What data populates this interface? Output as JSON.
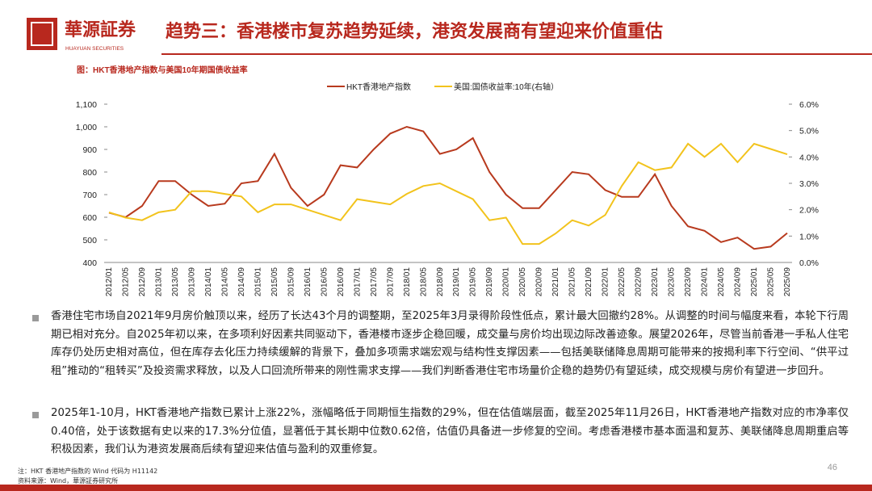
{
  "header": {
    "logo_name": "華源証券",
    "logo_sub": "HUAYUAN SECURITIES",
    "title": "趋势三：香港楼市复苏趋势延续，港资发展商有望迎来价值重估"
  },
  "figure_caption": "图：HKT香港地产指数与美国10年期国债收益率",
  "chart_data": {
    "type": "line",
    "categories": [
      "2012/01",
      "2012/05",
      "2012/09",
      "2013/01",
      "2013/05",
      "2013/09",
      "2014/01",
      "2014/05",
      "2014/09",
      "2015/01",
      "2015/05",
      "2015/09",
      "2016/01",
      "2016/05",
      "2016/09",
      "2017/01",
      "2017/05",
      "2017/09",
      "2018/01",
      "2018/05",
      "2018/09",
      "2019/01",
      "2019/05",
      "2019/09",
      "2020/01",
      "2020/05",
      "2020/09",
      "2021/01",
      "2021/05",
      "2021/09",
      "2022/01",
      "2022/05",
      "2022/09",
      "2023/01",
      "2023/05",
      "2023/09",
      "2024/01",
      "2024/05",
      "2024/09",
      "2025/01",
      "2025/05",
      "2025/09"
    ],
    "series": [
      {
        "name": "HKT香港地产指数",
        "color": "#b83a1e",
        "values": [
          620,
          600,
          650,
          760,
          760,
          700,
          650,
          660,
          750,
          760,
          880,
          730,
          650,
          700,
          830,
          820,
          900,
          970,
          1000,
          980,
          880,
          900,
          950,
          800,
          700,
          640,
          640,
          720,
          800,
          790,
          720,
          690,
          690,
          790,
          650,
          560,
          540,
          490,
          510,
          460,
          470,
          530
        ]
      },
      {
        "name": "美国:国债收益率:10年(右轴）",
        "color": "#f2c31c",
        "axis": "y2",
        "values": [
          1.9,
          1.7,
          1.6,
          1.9,
          2.0,
          2.7,
          2.7,
          2.6,
          2.5,
          1.9,
          2.2,
          2.2,
          2.0,
          1.8,
          1.6,
          2.4,
          2.3,
          2.2,
          2.6,
          2.9,
          3.0,
          2.7,
          2.4,
          1.6,
          1.7,
          0.7,
          0.7,
          1.1,
          1.6,
          1.4,
          1.8,
          2.9,
          3.8,
          3.5,
          3.6,
          4.5,
          4.0,
          4.5,
          3.8,
          4.5,
          4.3,
          4.1
        ]
      }
    ],
    "ylim": [
      400,
      1100
    ],
    "yticks": [
      400,
      500,
      600,
      700,
      800,
      900,
      {
        "value": 1000,
        "label": "1,000"
      },
      {
        "value": 1100,
        "label": "1,100"
      }
    ],
    "y2lim": [
      0,
      6
    ],
    "y2ticks": [
      {
        "value": 0,
        "label": "0.0%"
      },
      {
        "value": 1,
        "label": "1.0%"
      },
      {
        "value": 2,
        "label": "2.0%"
      },
      {
        "value": 3,
        "label": "3.0%"
      },
      {
        "value": 4,
        "label": "4.0%"
      },
      {
        "value": 5,
        "label": "5.0%"
      },
      {
        "value": 6,
        "label": "6.0%"
      }
    ]
  },
  "bullets": [
    "香港住宅市场自2021年9月房价触顶以来，经历了长达43个月的调整期，至2025年3月录得阶段性低点，累计最大回撤约28%。从调整的时间与幅度来看，本轮下行周期已相对充分。自2025年初以来，在多项利好因素共同驱动下，香港楼市逐步企稳回暖，成交量与房价均出现边际改善迹象。展望2026年，尽管当前香港一手私人住宅库存仍处历史相对高位，但在库存去化压力持续缓解的背景下，叠加多项需求端宏观与结构性支撑因素——包括美联储降息周期可能带来的按揭利率下行空间、“供平过租”推动的“租转买”及投资需求释放，以及人口回流所带来的刚性需求支撑——我们判断香港住宅市场量价企稳的趋势仍有望延续，成交规模与房价有望进一步回升。",
    "2025年1-10月，HKT香港地产指数已累计上涨22%，涨幅略低于同期恒生指数的29%，但在估值端层面，截至2025年11月26日，HKT香港地产指数对应的市净率仅0.40倍，处于该数据有史以来的17.3%分位值，显著低于其长期中位数0.62倍，估值仍具备进一步修复的空间。考虑香港楼市基本面温和复苏、美联储降息周期重启等积极因素，我们认为港资发展商后续有望迎来估值与盈利的双重修复。"
  ],
  "notes": [
    "注：HKT 香港地产指数的 Wind 代码为 H11142",
    "资料来源：Wind，華源証券研究所"
  ],
  "page_number": "46"
}
